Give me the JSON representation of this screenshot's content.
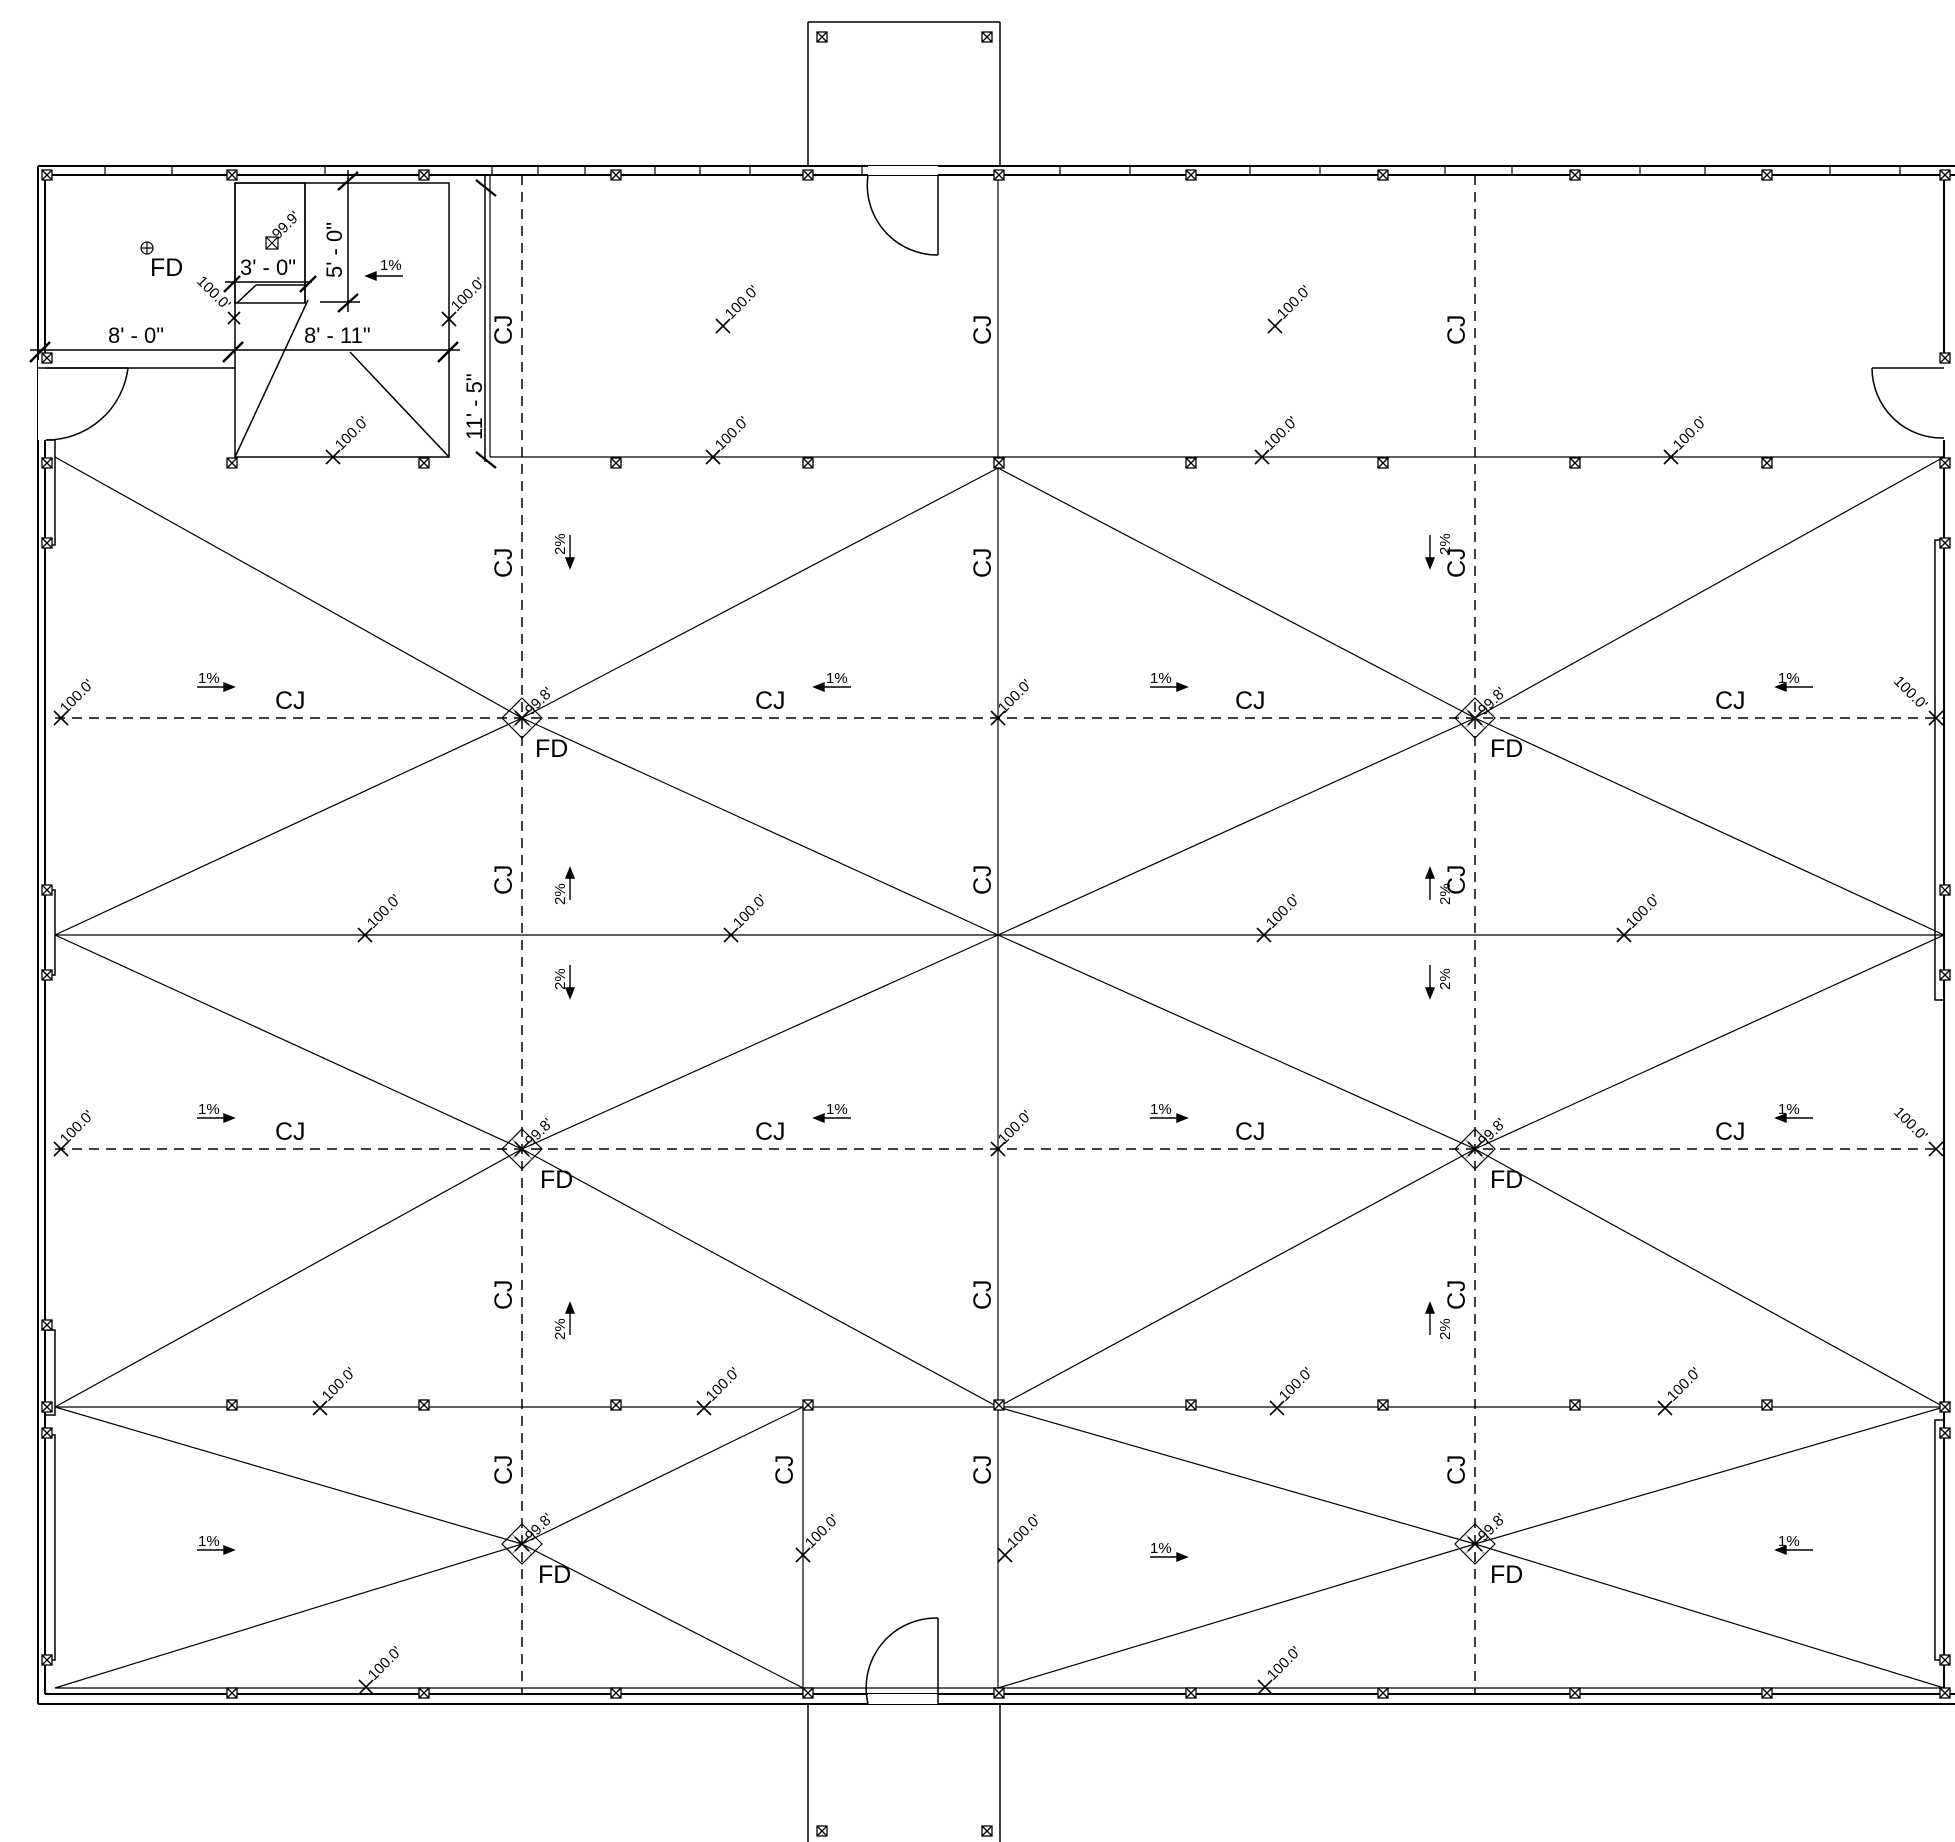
{
  "labels": {
    "cj": "CJ",
    "fd": "FD",
    "elev_high": "100.0'",
    "elev_drain": "99.8'",
    "elev_room_drain": "99.9'",
    "slope_1": "1%",
    "slope_2": "2%"
  },
  "dimensions": {
    "dim_3_0": "3' - 0\"",
    "dim_5_0": "5' - 0\"",
    "dim_8_0": "8' - 0\"",
    "dim_8_11": "8' - 11\"",
    "dim_11_5": "11' - 5\""
  },
  "colors": {
    "line": "#000000",
    "background": "#ffffff",
    "drain_hatch": "#888888"
  }
}
